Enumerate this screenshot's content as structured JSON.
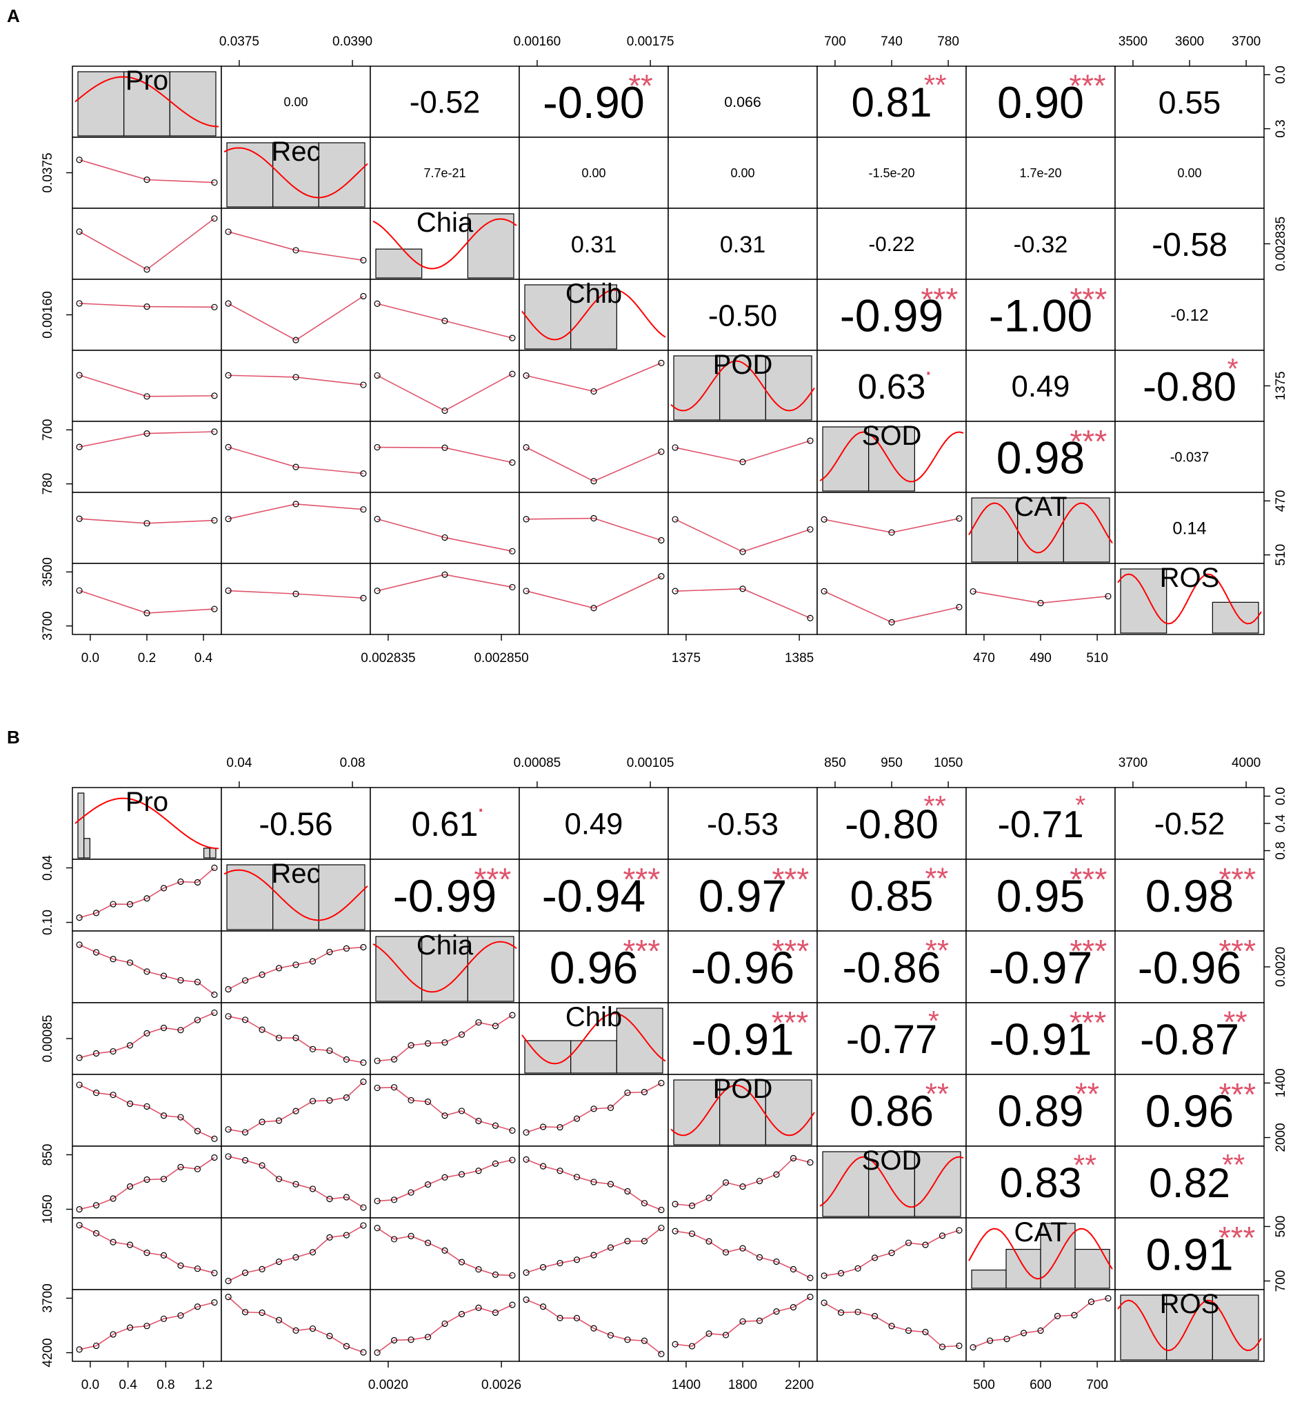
{
  "colors": {
    "hist_fill": "#d3d3d3",
    "smooth_line": "#ff0000",
    "fit_line": "#df536b",
    "stars": "#df536b",
    "points": "#000000"
  },
  "chart_data": [
    {
      "type": "scatter-matrix",
      "panel_label": "A",
      "variables": [
        "Pro",
        "Rec",
        "Chia",
        "Chib",
        "POD",
        "SOD",
        "CAT",
        "ROS"
      ],
      "correlations": [
        [
          "",
          "0.00",
          "-0.52",
          "-0.90",
          "0.066",
          "0.81",
          "0.90",
          "0.55"
        ],
        [
          "",
          "",
          "7.7e-21",
          "0.00",
          "0.00",
          "-1.5e-20",
          "1.7e-20",
          "0.00"
        ],
        [
          "",
          "",
          "",
          "0.31",
          "0.31",
          "-0.22",
          "-0.32",
          "-0.58"
        ],
        [
          "",
          "",
          "",
          "",
          "-0.50",
          "-0.99",
          "-1.00",
          "-0.12"
        ],
        [
          "",
          "",
          "",
          "",
          "",
          "0.63",
          "0.49",
          "-0.80"
        ],
        [
          "",
          "",
          "",
          "",
          "",
          "",
          "0.98",
          "-0.037"
        ],
        [
          "",
          "",
          "",
          "",
          "",
          "",
          "",
          "0.14"
        ]
      ],
      "significance": [
        [
          "",
          "",
          "",
          "**",
          "",
          "**",
          "***",
          ""
        ],
        [
          "",
          "",
          "",
          "",
          "",
          "",
          "",
          ""
        ],
        [
          "",
          "",
          "",
          "",
          "",
          "",
          "",
          ""
        ],
        [
          "",
          "",
          "",
          "",
          "",
          "***",
          "***",
          ""
        ],
        [
          "",
          "",
          "",
          "",
          "",
          ".",
          "",
          "*"
        ],
        [
          "",
          "",
          "",
          "",
          "",
          "",
          "***",
          ""
        ],
        [
          "",
          "",
          "",
          "",
          "",
          "",
          "",
          ""
        ]
      ],
      "ticks": {
        "top": [
          {
            "col": 1,
            "labels": [
              "0.0375",
              "0.0390"
            ]
          },
          {
            "col": 3,
            "labels": [
              "0.00160",
              "0.00175"
            ]
          },
          {
            "col": 5,
            "labels": [
              "700",
              "740",
              "780"
            ]
          },
          {
            "col": 7,
            "labels": [
              "3500",
              "3600",
              "3700"
            ]
          }
        ],
        "bottom": [
          {
            "col": 0,
            "labels": [
              "0.0",
              "0.2",
              "0.4"
            ]
          },
          {
            "col": 2,
            "labels": [
              "0.002835",
              "0.002850"
            ]
          },
          {
            "col": 4,
            "labels": [
              "1375",
              "1385"
            ]
          },
          {
            "col": 6,
            "labels": [
              "470",
              "490",
              "510"
            ]
          }
        ],
        "left": [
          {
            "row": 1,
            "labels": [
              "0.0375"
            ]
          },
          {
            "row": 3,
            "labels": [
              "0.00160"
            ]
          },
          {
            "row": 5,
            "labels": [
              "700",
              "780"
            ]
          },
          {
            "row": 7,
            "labels": [
              "3500",
              "3700"
            ]
          }
        ],
        "right": [
          {
            "row": 0,
            "labels": [
              "0.0",
              "0.3"
            ]
          },
          {
            "row": 2,
            "labels": [
              "0.002835"
            ]
          },
          {
            "row": 4,
            "labels": [
              "1375"
            ]
          },
          {
            "row": 6,
            "labels": [
              "470",
              "510"
            ]
          }
        ]
      }
    },
    {
      "type": "scatter-matrix",
      "panel_label": "B",
      "variables": [
        "Pro",
        "Rec",
        "Chia",
        "Chib",
        "POD",
        "SOD",
        "CAT",
        "ROS"
      ],
      "correlations": [
        [
          "",
          "-0.56",
          "0.61",
          "0.49",
          "-0.53",
          "-0.80",
          "-0.71",
          "-0.52"
        ],
        [
          "",
          "",
          "-0.99",
          "-0.94",
          "0.97",
          "0.85",
          "0.95",
          "0.98"
        ],
        [
          "",
          "",
          "",
          "0.96",
          "-0.96",
          "-0.86",
          "-0.97",
          "-0.96"
        ],
        [
          "",
          "",
          "",
          "",
          "-0.91",
          "-0.77",
          "-0.91",
          "-0.87"
        ],
        [
          "",
          "",
          "",
          "",
          "",
          "0.86",
          "0.89",
          "0.96"
        ],
        [
          "",
          "",
          "",
          "",
          "",
          "",
          "0.83",
          "0.82"
        ],
        [
          "",
          "",
          "",
          "",
          "",
          "",
          "",
          "0.91"
        ]
      ],
      "significance": [
        [
          "",
          "",
          ".",
          "",
          "",
          "**",
          "*",
          ""
        ],
        [
          "",
          "",
          "***",
          "***",
          "***",
          "**",
          "***",
          "***"
        ],
        [
          "",
          "",
          "",
          "***",
          "***",
          "**",
          "***",
          "***"
        ],
        [
          "",
          "",
          "",
          "",
          "***",
          "*",
          "***",
          "**"
        ],
        [
          "",
          "",
          "",
          "",
          "",
          "**",
          "**",
          "***"
        ],
        [
          "",
          "",
          "",
          "",
          "",
          "",
          "**",
          "**"
        ],
        [
          "",
          "",
          "",
          "",
          "",
          "",
          "",
          "***"
        ]
      ],
      "ticks": {
        "top": [
          {
            "col": 1,
            "labels": [
              "0.04",
              "0.08"
            ]
          },
          {
            "col": 3,
            "labels": [
              "0.00085",
              "0.00105"
            ]
          },
          {
            "col": 5,
            "labels": [
              "850",
              "950",
              "1050"
            ]
          },
          {
            "col": 7,
            "labels": [
              "3700",
              "4000"
            ]
          }
        ],
        "bottom": [
          {
            "col": 0,
            "labels": [
              "0.0",
              "0.4",
              "0.8",
              "1.2"
            ]
          },
          {
            "col": 2,
            "labels": [
              "0.0020",
              "0.0026"
            ]
          },
          {
            "col": 4,
            "labels": [
              "1400",
              "1800",
              "2200"
            ]
          },
          {
            "col": 6,
            "labels": [
              "500",
              "600",
              "700"
            ]
          }
        ],
        "left": [
          {
            "row": 1,
            "labels": [
              "0.04",
              "0.10"
            ]
          },
          {
            "row": 3,
            "labels": [
              "0.00085"
            ]
          },
          {
            "row": 5,
            "labels": [
              "850",
              "1050"
            ]
          },
          {
            "row": 7,
            "labels": [
              "3700",
              "4200"
            ]
          }
        ],
        "right": [
          {
            "row": 0,
            "labels": [
              "0.0",
              "0.4",
              "0.8"
            ]
          },
          {
            "row": 2,
            "labels": [
              "0.0020"
            ]
          },
          {
            "row": 4,
            "labels": [
              "1400",
              "2000"
            ]
          },
          {
            "row": 6,
            "labels": [
              "500",
              "700"
            ]
          }
        ]
      }
    }
  ]
}
